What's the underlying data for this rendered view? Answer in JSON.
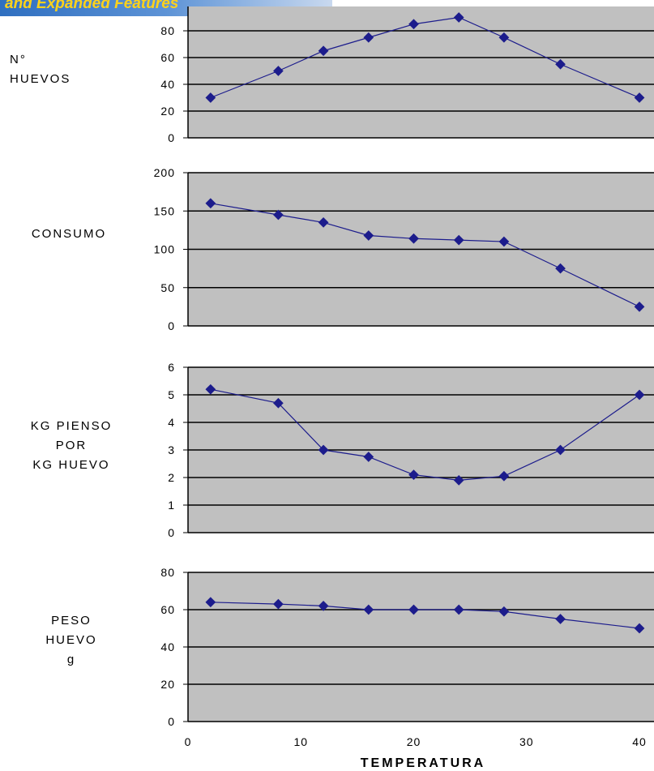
{
  "banner": {
    "text": "and Expanded Features"
  },
  "chart_data": [
    {
      "type": "line",
      "ylabel": "N°\nHUEVOS",
      "yticks": [
        "0",
        "20",
        "40",
        "60",
        "80"
      ],
      "ylim": [
        0,
        90
      ],
      "x": [
        2,
        8,
        12,
        16,
        20,
        24,
        28,
        33,
        40
      ],
      "series": [
        {
          "values": [
            30,
            50,
            65,
            75,
            85,
            90,
            75,
            55,
            30
          ]
        }
      ],
      "grid": true
    },
    {
      "type": "line",
      "ylabel": "CONSUMO",
      "yticks": [
        "0",
        "50",
        "100",
        "150",
        "200"
      ],
      "ylim": [
        0,
        200
      ],
      "x": [
        2,
        8,
        12,
        16,
        20,
        24,
        28,
        33,
        40
      ],
      "series": [
        {
          "values": [
            160,
            145,
            135,
            118,
            114,
            112,
            110,
            75,
            25
          ]
        }
      ],
      "grid": true
    },
    {
      "type": "line",
      "ylabel": "KG PIENSO\nPOR\nKG HUEVO",
      "yticks": [
        "0",
        "1",
        "2",
        "3",
        "4",
        "5",
        "6"
      ],
      "ylim": [
        0,
        6
      ],
      "x": [
        2,
        8,
        12,
        16,
        20,
        24,
        28,
        33,
        40
      ],
      "series": [
        {
          "values": [
            5.2,
            4.7,
            3.0,
            2.75,
            2.1,
            1.9,
            2.05,
            3.0,
            5.0
          ]
        }
      ],
      "grid": true
    },
    {
      "type": "line",
      "ylabel": "PESO\nHUEVO\ng",
      "yticks": [
        "0",
        "20",
        "40",
        "60",
        "80"
      ],
      "ylim": [
        0,
        80
      ],
      "x": [
        2,
        8,
        12,
        16,
        20,
        24,
        28,
        33,
        40
      ],
      "series": [
        {
          "values": [
            64,
            63,
            62,
            60,
            60,
            60,
            59,
            55,
            50
          ]
        }
      ],
      "grid": true
    }
  ],
  "x_axis": {
    "title": "TEMPERATURA",
    "ticks": [
      "0",
      "10",
      "20",
      "30",
      "40"
    ],
    "xlim": [
      0,
      40
    ]
  },
  "colors": {
    "plot_bg": "#c0c0c0",
    "series": "#1c1c8c",
    "grid": "#000000"
  }
}
